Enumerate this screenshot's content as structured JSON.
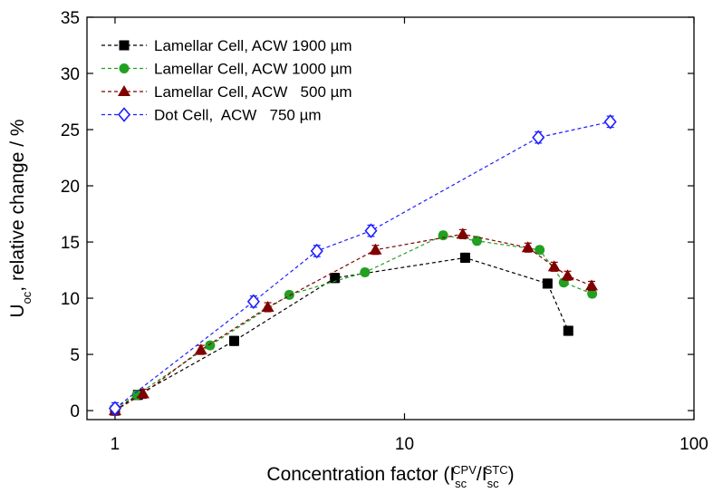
{
  "chart_data": {
    "type": "scatter",
    "xlabel": [
      "Concentration factor (I",
      "sc",
      "CPV",
      "/I",
      "sc",
      "STC",
      ")"
    ],
    "ylabel": [
      "U",
      "oc",
      ", relative change / %"
    ],
    "xscale": "log",
    "xlim": [
      0.8,
      100
    ],
    "xticks": [
      1,
      10,
      100
    ],
    "ylim": [
      -0.8,
      35
    ],
    "yticks": [
      0,
      5,
      10,
      15,
      20,
      25,
      30,
      35
    ],
    "grid": false,
    "legend": "upper left",
    "series": [
      {
        "name": "Lamellar Cell, ACW 1900 µm",
        "color": "#000000",
        "marker": "square",
        "x": [
          1,
          1.2,
          2.58,
          5.75,
          16.2,
          31.2,
          36.8
        ],
        "values": [
          0,
          1.4,
          6.2,
          11.8,
          13.6,
          11.3,
          7.1
        ],
        "errors": [
          0.4,
          0.4,
          0.4,
          0.4,
          0.4,
          0.4,
          0.4
        ]
      },
      {
        "name": "Lamellar Cell, ACW 1000 µm",
        "color": "#22a022",
        "marker": "circle",
        "x": [
          1,
          1.19,
          2.13,
          4.0,
          7.3,
          13.6,
          17.8,
          29.3,
          35.5,
          44.5
        ],
        "values": [
          0.2,
          1.4,
          5.8,
          10.3,
          12.3,
          15.6,
          15.1,
          14.3,
          11.4,
          10.4
        ],
        "errors": [
          0.3,
          0.3,
          0.3,
          0.3,
          0.3,
          0.3,
          0.3,
          0.3,
          0.3,
          0.3
        ]
      },
      {
        "name": "Lamellar Cell, ACW   500 µm",
        "color": "#800000",
        "marker": "triangle",
        "x": [
          1,
          1.25,
          1.98,
          3.37,
          7.94,
          15.9,
          26.7,
          32.9,
          36.6,
          44.3
        ],
        "values": [
          0,
          1.5,
          5.4,
          9.2,
          14.3,
          15.7,
          14.5,
          12.8,
          12.0,
          11.1
        ],
        "errors": [
          0.4,
          0.4,
          0.4,
          0.4,
          0.4,
          0.4,
          0.4,
          0.4,
          0.4,
          0.4
        ]
      },
      {
        "name": "Dot Cell,  ACW   750 µm",
        "color": "#1f1fff",
        "marker": "diamond",
        "x": [
          1,
          3.01,
          4.98,
          7.66,
          29.0,
          51.4
        ],
        "values": [
          0.2,
          9.7,
          14.2,
          16.0,
          24.3,
          25.7
        ],
        "errors": [
          0.5,
          0.5,
          0.5,
          0.5,
          0.5,
          0.5
        ]
      }
    ]
  }
}
